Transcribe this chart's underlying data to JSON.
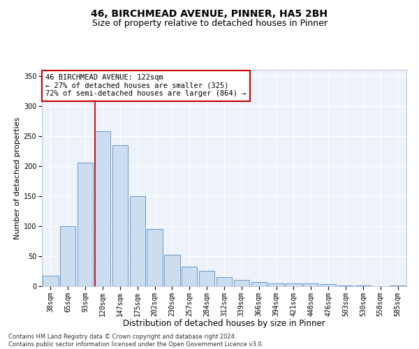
{
  "title1": "46, BIRCHMEAD AVENUE, PINNER, HA5 2BH",
  "title2": "Size of property relative to detached houses in Pinner",
  "xlabel": "Distribution of detached houses by size in Pinner",
  "ylabel": "Number of detached properties",
  "bar_labels": [
    "38sqm",
    "65sqm",
    "93sqm",
    "120sqm",
    "147sqm",
    "175sqm",
    "202sqm",
    "230sqm",
    "257sqm",
    "284sqm",
    "312sqm",
    "339sqm",
    "366sqm",
    "394sqm",
    "421sqm",
    "448sqm",
    "476sqm",
    "503sqm",
    "530sqm",
    "558sqm",
    "585sqm"
  ],
  "bar_values": [
    18,
    100,
    205,
    258,
    235,
    150,
    95,
    52,
    33,
    25,
    15,
    10,
    7,
    5,
    5,
    5,
    4,
    1,
    1,
    0,
    1
  ],
  "bar_color": "#ccddf0",
  "bar_edge_color": "#6699cc",
  "property_line_color": "#cc0000",
  "property_line_index": 3,
  "annotation_line1": "46 BIRCHMEAD AVENUE: 122sqm",
  "annotation_line2": "← 27% of detached houses are smaller (325)",
  "annotation_line3": "72% of semi-detached houses are larger (864) →",
  "annotation_box_color": "#ffffff",
  "annotation_box_edge_color": "#cc0000",
  "ylim": [
    0,
    360
  ],
  "yticks": [
    0,
    50,
    100,
    150,
    200,
    250,
    300,
    350
  ],
  "background_color": "#eef2fb",
  "grid_color": "#ffffff",
  "footnote": "Contains HM Land Registry data © Crown copyright and database right 2024.\nContains public sector information licensed under the Open Government Licence v3.0.",
  "title1_fontsize": 10,
  "title2_fontsize": 9,
  "xlabel_fontsize": 8.5,
  "ylabel_fontsize": 8,
  "tick_fontsize": 7,
  "annotation_fontsize": 7.5,
  "footnote_fontsize": 6
}
